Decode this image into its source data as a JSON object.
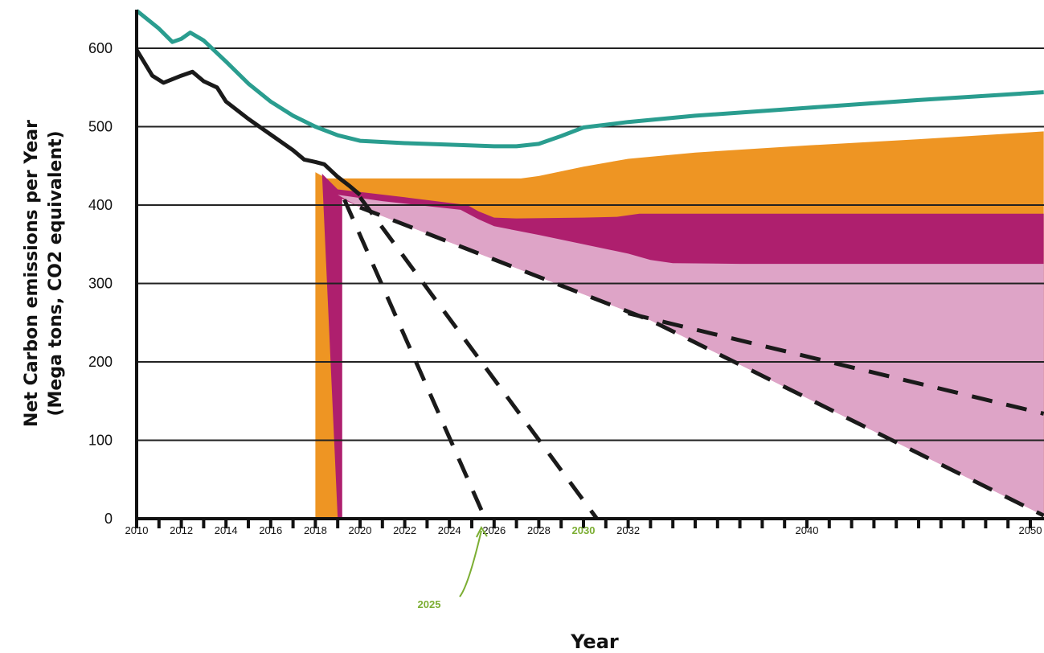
{
  "chart_data": {
    "type": "area",
    "title": "",
    "xlabel": "Year",
    "ylabel_line1": "Net Carbon emissions per Year",
    "ylabel_line2": "(Mega tons, CO2 equivalent)",
    "xlim": [
      2010,
      2050.6
    ],
    "ylim": [
      0,
      650
    ],
    "y_ticks": [
      0,
      100,
      200,
      300,
      400,
      500,
      600
    ],
    "x_tick_labels": [
      {
        "x": 2010,
        "label": "2010"
      },
      {
        "x": 2012,
        "label": "2012"
      },
      {
        "x": 2014,
        "label": "2014"
      },
      {
        "x": 2016,
        "label": "2016"
      },
      {
        "x": 2018,
        "label": "2018"
      },
      {
        "x": 2020,
        "label": "2020"
      },
      {
        "x": 2022,
        "label": "2022"
      },
      {
        "x": 2024,
        "label": "2024"
      },
      {
        "x": 2026,
        "label": "2026"
      },
      {
        "x": 2028,
        "label": "2028"
      },
      {
        "x": 2030,
        "label": "2030",
        "highlight": true
      },
      {
        "x": 2032,
        "label": "2032"
      },
      {
        "x": 2040,
        "label": "2040"
      },
      {
        "x": 2050,
        "label": "2050"
      }
    ],
    "x_tick_marks": [
      2010,
      2011,
      2012,
      2013,
      2014,
      2015,
      2016,
      2017,
      2018,
      2019,
      2020,
      2021,
      2022,
      2023,
      2024,
      2025,
      2026,
      2027,
      2028,
      2029,
      2030,
      2031,
      2032,
      2033,
      2034,
      2035,
      2036,
      2037,
      2038,
      2039,
      2040,
      2041,
      2042,
      2043,
      2044,
      2045,
      2046,
      2047,
      2048,
      2049,
      2050
    ],
    "grid": "horizontal",
    "colors": {
      "teal": "#2a9d8f",
      "orange": "#ee9523",
      "magenta": "#ae1f6e",
      "pink": "#dea4c7",
      "black": "#1a1a1a",
      "annotation": "#7cae33"
    },
    "series": [
      {
        "role": "teal-line",
        "points": [
          [
            2010,
            648
          ],
          [
            2011,
            625
          ],
          [
            2011.6,
            608
          ],
          [
            2012,
            612
          ],
          [
            2012.4,
            620
          ],
          [
            2013,
            610
          ],
          [
            2014,
            583
          ],
          [
            2015,
            555
          ],
          [
            2016,
            532
          ],
          [
            2017,
            514
          ],
          [
            2018,
            500
          ],
          [
            2019,
            489
          ],
          [
            2020,
            482
          ],
          [
            2022,
            479
          ],
          [
            2024,
            477
          ],
          [
            2026,
            475
          ],
          [
            2027,
            475
          ],
          [
            2028,
            478
          ],
          [
            2029,
            488
          ],
          [
            2030,
            499
          ],
          [
            2032,
            506
          ],
          [
            2035,
            514
          ],
          [
            2040,
            524
          ],
          [
            2045,
            534
          ],
          [
            2050.6,
            544
          ]
        ]
      },
      {
        "role": "black-historic-line",
        "points": [
          [
            2010,
            598
          ],
          [
            2010.7,
            565
          ],
          [
            2011.2,
            556
          ],
          [
            2012,
            565
          ],
          [
            2012.5,
            570
          ],
          [
            2013,
            558
          ],
          [
            2013.6,
            550
          ],
          [
            2014,
            532
          ],
          [
            2015,
            510
          ],
          [
            2016,
            490
          ],
          [
            2017,
            470
          ],
          [
            2017.5,
            458
          ],
          [
            2018,
            455
          ],
          [
            2018.4,
            452
          ],
          [
            2019,
            436
          ],
          [
            2019.5,
            425
          ],
          [
            2020,
            413
          ]
        ]
      },
      {
        "role": "orange-area",
        "upper": [
          [
            2018,
            442
          ],
          [
            2018.5,
            434
          ],
          [
            2027.2,
            434
          ],
          [
            2028,
            437
          ],
          [
            2030,
            449
          ],
          [
            2032,
            459
          ],
          [
            2035,
            467
          ],
          [
            2040,
            476
          ],
          [
            2045,
            484
          ],
          [
            2050.6,
            494
          ]
        ]
      },
      {
        "role": "magenta-area",
        "upper": [
          [
            2019,
            420
          ],
          [
            2022,
            410
          ],
          [
            2024.8,
            400
          ],
          [
            2025.3,
            392
          ],
          [
            2026,
            384
          ],
          [
            2027,
            383
          ],
          [
            2030,
            384
          ],
          [
            2031.5,
            385
          ],
          [
            2032.5,
            389
          ],
          [
            2035,
            389
          ],
          [
            2050.6,
            389
          ]
        ]
      },
      {
        "role": "pink-area",
        "upper": [
          [
            2019,
            413
          ],
          [
            2021,
            405
          ],
          [
            2024.5,
            394
          ],
          [
            2025.3,
            382
          ],
          [
            2026,
            373
          ],
          [
            2028,
            362
          ],
          [
            2030,
            350
          ],
          [
            2032,
            338
          ],
          [
            2033,
            330
          ],
          [
            2034,
            326
          ],
          [
            2037,
            325
          ],
          [
            2050.6,
            325
          ]
        ]
      },
      {
        "role": "pink-area-lower",
        "points": [
          [
            2020,
            397
          ],
          [
            2033,
            253
          ],
          [
            2050.6,
            4
          ]
        ]
      },
      {
        "role": "dashed-to-2025",
        "points": [
          [
            2019.3,
            407
          ],
          [
            2025.6,
            0
          ]
        ]
      },
      {
        "role": "dashed-to-2030",
        "points": [
          [
            2020,
            410
          ],
          [
            2030.6,
            0
          ]
        ]
      },
      {
        "role": "dashed-to-2050-steep",
        "points": [
          [
            2020,
            397
          ],
          [
            2033,
            253
          ],
          [
            2050.6,
            4
          ]
        ]
      },
      {
        "role": "dashed-to-2050-shallow",
        "points": [
          [
            2032,
            262
          ],
          [
            2050.6,
            134
          ]
        ]
      }
    ],
    "annotations": [
      {
        "text": "2025",
        "x": 2025.5,
        "y": 0,
        "note": "arrow from label below axis"
      }
    ]
  }
}
